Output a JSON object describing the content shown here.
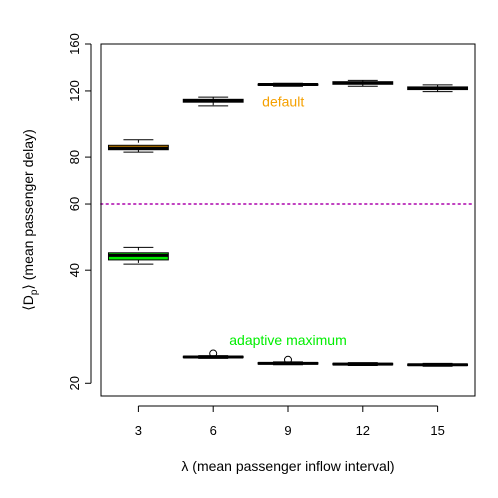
{
  "chart_data": {
    "type": "boxplot",
    "title": "",
    "xlabel": "λ (mean passenger inflow interval)",
    "ylabel_parts": [
      "⟨D",
      "p",
      "⟩ (mean passenger delay)"
    ],
    "y_scale": "log",
    "ylim": [
      18.5,
      160
    ],
    "yticks": [
      20,
      40,
      60,
      80,
      120,
      160
    ],
    "categories": [
      "3",
      "6",
      "9",
      "12",
      "15"
    ],
    "reference_line": {
      "y": 60,
      "style": "dotted",
      "color": "#c040c0"
    },
    "series": [
      {
        "name": "default",
        "fill": "#f5a000",
        "label_color": "#f5a000",
        "label_at_category": "6",
        "label_y": 109,
        "boxes": [
          {
            "category": "3",
            "whisker_low": 82.5,
            "q1": 83.7,
            "median": 84.5,
            "q3": 86.0,
            "whisker_high": 89.0
          },
          {
            "category": "6",
            "whisker_low": 109.5,
            "q1": 112.0,
            "median": 112.8,
            "q3": 114.0,
            "whisker_high": 115.5
          },
          {
            "category": "9",
            "whisker_low": 123.5,
            "q1": 124.3,
            "median": 124.8,
            "q3": 125.2,
            "whisker_high": 125.8
          },
          {
            "category": "12",
            "whisker_low": 123.5,
            "q1": 125.0,
            "median": 126.0,
            "q3": 127.0,
            "whisker_high": 128.0
          },
          {
            "category": "15",
            "whisker_low": 119.5,
            "q1": 121.0,
            "median": 122.0,
            "q3": 123.0,
            "whisker_high": 124.5
          }
        ],
        "outliers": []
      },
      {
        "name": "adaptive maximum",
        "fill": "#00ee00",
        "label_color": "#00ee00",
        "label_at_category": "9",
        "label_y": 25.3,
        "boxes": [
          {
            "category": "3",
            "whisker_low": 41.5,
            "q1": 42.6,
            "median": 43.8,
            "q3": 44.5,
            "whisker_high": 46.0
          },
          {
            "category": "6",
            "whisker_low": 23.3,
            "q1": 23.4,
            "median": 23.5,
            "q3": 23.6,
            "whisker_high": 23.7
          },
          {
            "category": "9",
            "whisker_low": 22.4,
            "q1": 22.5,
            "median": 22.6,
            "q3": 22.7,
            "whisker_high": 22.8
          },
          {
            "category": "12",
            "whisker_low": 22.3,
            "q1": 22.4,
            "median": 22.5,
            "q3": 22.6,
            "whisker_high": 22.7
          },
          {
            "category": "15",
            "whisker_low": 22.2,
            "q1": 22.3,
            "median": 22.4,
            "q3": 22.5,
            "whisker_high": 22.6
          }
        ],
        "outliers": [
          {
            "category": "6",
            "y": 24.0
          },
          {
            "category": "9",
            "y": 23.1
          }
        ]
      }
    ],
    "grid": false,
    "legend": "none"
  }
}
